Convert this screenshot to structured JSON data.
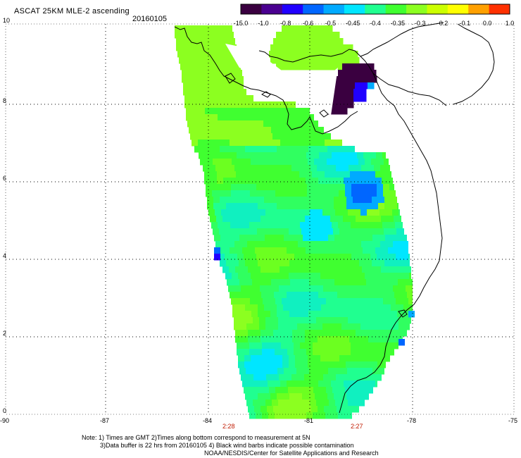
{
  "title": "ASCAT 25KM MLE-2 ascending",
  "date": "20160105",
  "colorbar": {
    "labels": [
      "-15.0",
      "-1.0",
      "-0.8",
      "-0.6",
      "-0.5",
      "-0.45",
      "-0.4",
      "-0.35",
      "-0.3",
      "-0.2",
      "-0.1",
      "0.0",
      "1.0"
    ],
    "colors": [
      "#3a0040",
      "#4a0090",
      "#2000ff",
      "#0066ff",
      "#00aaff",
      "#00e6ff",
      "#20ff90",
      "#40ff30",
      "#8cff20",
      "#ccff00",
      "#ffff00",
      "#ffa000",
      "#ff3000"
    ]
  },
  "axes": {
    "x_ticks": [
      "-90",
      "-87",
      "-84",
      "-81",
      "-78",
      "-75"
    ],
    "y_ticks": [
      "10",
      "8",
      "6",
      "4",
      "2",
      "0"
    ]
  },
  "pass_times": [
    "2:28",
    "2:27"
  ],
  "notes": {
    "line1": "Note: 1) Times are GMT 2)Times along bottom correspond to measurement at 5N",
    "line2": "3)Data buffer is 22 hrs from 20160105 4) Black wind barbs indicate possible contamination",
    "line3": "NOAA/NESDIS/Center for Satellite Applications and Research"
  }
}
